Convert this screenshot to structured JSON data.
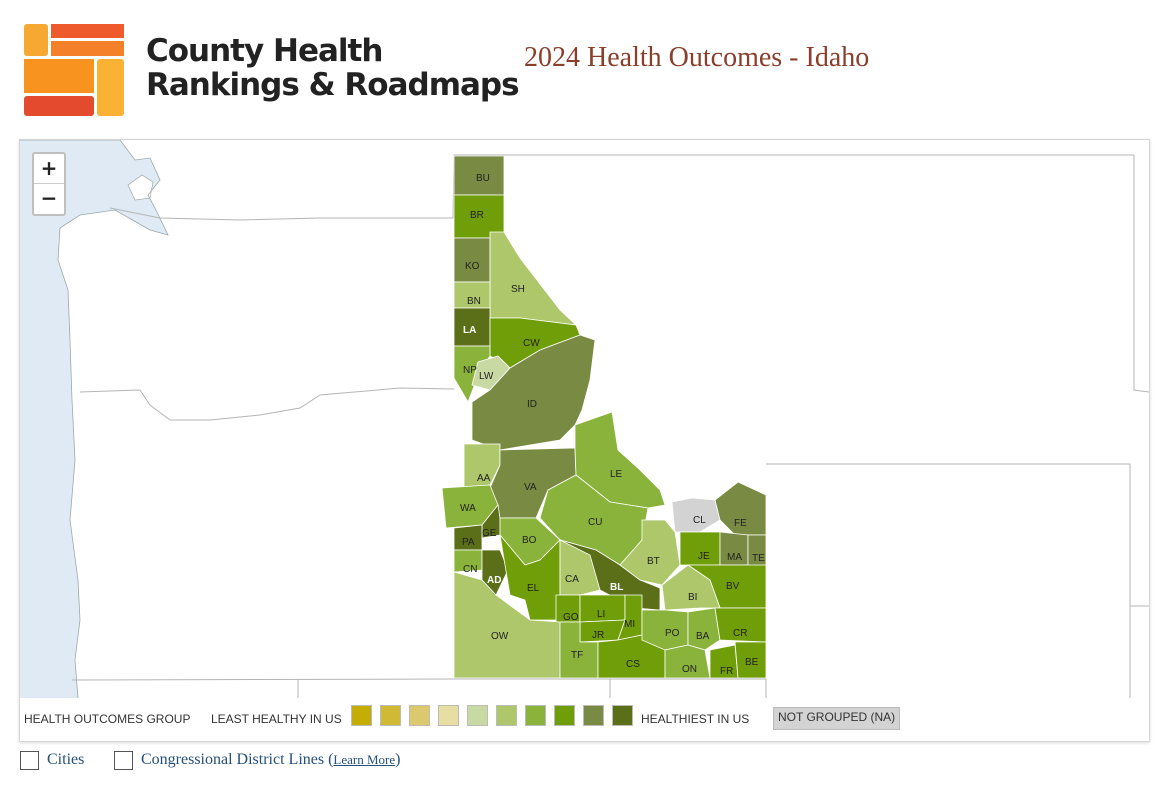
{
  "header": {
    "brand_line1": "County Health",
    "brand_line2": "Rankings & Roadmaps",
    "title": "2024 Health Outcomes - Idaho"
  },
  "map": {
    "zoom_in": "+",
    "zoom_out": "−",
    "counties": {
      "BU": "BU",
      "BR": "BR",
      "KO": "KO",
      "BN": "BN",
      "SH": "SH",
      "LA": "LA",
      "CW": "CW",
      "NP": "NP",
      "LW": "LW",
      "ID": "ID",
      "AA": "AA",
      "VA": "VA",
      "LE": "LE",
      "WA": "WA",
      "GE": "GE",
      "CU": "CU",
      "BO": "BO",
      "PA": "PA",
      "CL": "CL",
      "FE": "FE",
      "CN": "CN",
      "AD": "AD",
      "EL": "EL",
      "CA": "CA",
      "BL": "BL",
      "BT": "BT",
      "JE": "JE",
      "MA": "MA",
      "TE": "TE",
      "BV": "BV",
      "BI": "BI",
      "GO": "GO",
      "LI": "LI",
      "JR": "JR",
      "MI": "MI",
      "OW": "OW",
      "PO": "PO",
      "BA": "BA",
      "CR": "CR",
      "TF": "TF",
      "CS": "CS",
      "ON": "ON",
      "FR": "FR",
      "BE": "BE"
    }
  },
  "legend": {
    "group_label": "HEALTH OUTCOMES GROUP",
    "least_label": "LEAST HEALTHY IN US",
    "most_label": "HEALTHIEST IN US",
    "na_label": "NOT GROUPED (NA)",
    "colors": [
      "#c4ae05",
      "#d0b935",
      "#dcc96e",
      "#e6dea2",
      "#c9d9a3",
      "#adc76a",
      "#8ab33b",
      "#6f9e08",
      "#798b42",
      "#5a6f18"
    ]
  },
  "options": {
    "cities_label": "Cities",
    "districts_label": "Congressional District Lines (",
    "learn_more": "Learn More",
    "close_paren": ")"
  }
}
